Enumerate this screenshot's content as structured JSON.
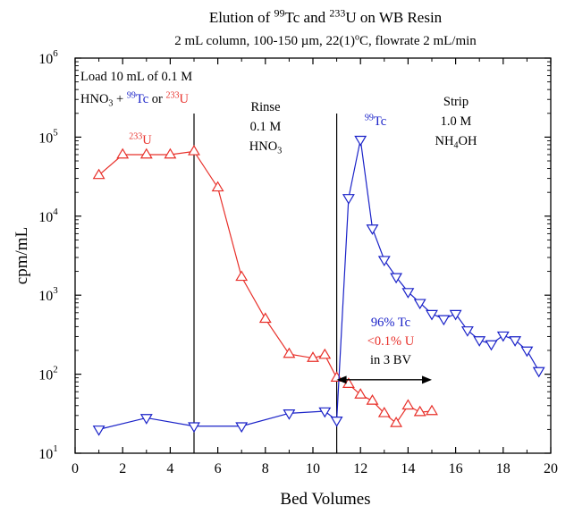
{
  "chart_data": {
    "type": "scatter",
    "title": {
      "parts": [
        {
          "text": "Elution of "
        },
        {
          "text": "99",
          "sup": true
        },
        {
          "text": "Tc and "
        },
        {
          "text": "233",
          "sup": true
        },
        {
          "text": "U on WB Resin"
        }
      ]
    },
    "subtitle": {
      "parts": [
        {
          "text": "2 mL column, 100-150 µm, 22(1)"
        },
        {
          "text": "o",
          "sup": true
        },
        {
          "text": "C, flowrate 2 mL/min"
        }
      ]
    },
    "xlabel": "Bed Volumes",
    "ylabel": "cpm/mL",
    "xlim": [
      0,
      20
    ],
    "ylim": [
      10,
      1000000
    ],
    "yscale": "log",
    "xticks": [
      0,
      2,
      4,
      6,
      8,
      10,
      12,
      14,
      16,
      18,
      20
    ],
    "yticks": [
      {
        "value": 10,
        "base": "10",
        "exp": "1"
      },
      {
        "value": 100,
        "base": "10",
        "exp": "2"
      },
      {
        "value": 1000,
        "base": "10",
        "exp": "3"
      },
      {
        "value": 10000,
        "base": "10",
        "exp": "4"
      },
      {
        "value": 100000,
        "base": "10",
        "exp": "5"
      },
      {
        "value": 1000000,
        "base": "10",
        "exp": "6"
      }
    ],
    "grid": false,
    "series": [
      {
        "color": "#e8302a",
        "marker": "triangle-up",
        "x": [
          1,
          2,
          3,
          4,
          5,
          6,
          7,
          8,
          9,
          10,
          10.5,
          11,
          11.5,
          12,
          12.5,
          13,
          13.5,
          14,
          14.5,
          15
        ],
        "y": [
          33000,
          60000,
          60000,
          60000,
          66000,
          23000,
          1700,
          500,
          180,
          160,
          175,
          90,
          75,
          55,
          46,
          32,
          24,
          40,
          33,
          34
        ]
      },
      {
        "color": "#1a22c8",
        "marker": "triangle-down",
        "x": [
          1,
          3,
          5,
          7,
          9,
          10.5,
          11,
          11.5,
          12,
          12.5,
          13,
          13.5,
          14,
          14.5,
          15,
          15.5,
          16,
          16.5,
          17,
          17.5,
          18,
          18.5,
          19,
          19.5
        ],
        "y": [
          20,
          28,
          22,
          22,
          32,
          34,
          26,
          17000,
          93000,
          7000,
          2800,
          1700,
          1100,
          800,
          580,
          500,
          580,
          360,
          270,
          240,
          310,
          270,
          200,
          110
        ]
      }
    ],
    "vlines": [
      5,
      11
    ],
    "arrow": {
      "x1": 11,
      "x2": 15,
      "y": 85
    },
    "annotations": [
      {
        "lines": [
          [
            {
              "text": "Load 10 mL of 0.1 M"
            }
          ],
          [
            {
              "text": "HNO"
            },
            {
              "text": "3",
              "sub": true
            },
            {
              "text": " + "
            },
            {
              "text": "99",
              "sup": true,
              "color": "#1a22c8"
            },
            {
              "text": "Tc",
              "color": "#1a22c8"
            },
            {
              "text": " or "
            },
            {
              "text": "233",
              "sup": true,
              "color": "#e8302a"
            },
            {
              "text": "U",
              "color": "#e8302a"
            }
          ]
        ]
      },
      {
        "lines": [
          [
            {
              "text": "233",
              "sup": true,
              "color": "#e8302a"
            },
            {
              "text": "U",
              "color": "#e8302a"
            }
          ]
        ]
      },
      {
        "lines": [
          [
            {
              "text": "Rinse"
            }
          ],
          [
            {
              "text": "0.1 M"
            }
          ],
          [
            {
              "text": "HNO"
            },
            {
              "text": "3",
              "sub": true
            }
          ]
        ]
      },
      {
        "lines": [
          [
            {
              "text": "99",
              "sup": true,
              "color": "#1a22c8"
            },
            {
              "text": "Tc",
              "color": "#1a22c8"
            }
          ]
        ]
      },
      {
        "lines": [
          [
            {
              "text": "Strip"
            }
          ],
          [
            {
              "text": "1.0 M"
            }
          ],
          [
            {
              "text": "NH"
            },
            {
              "text": "4",
              "sub": true
            },
            {
              "text": "OH"
            }
          ]
        ]
      },
      {
        "lines": [
          [
            {
              "text": "96% Tc",
              "color": "#1a22c8"
            }
          ],
          [
            {
              "text": "<0.1% U",
              "color": "#e8302a"
            }
          ],
          [
            {
              "text": "in 3 BV"
            }
          ]
        ]
      }
    ]
  }
}
